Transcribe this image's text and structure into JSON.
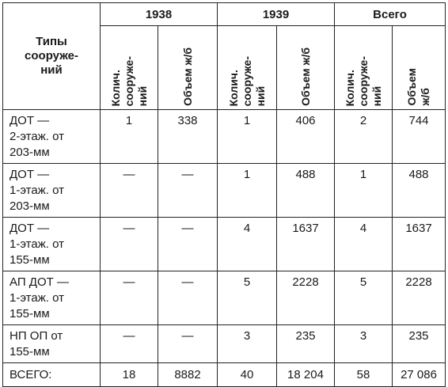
{
  "header": {
    "type_label": "Типы\nсооруже-\nний",
    "years": [
      "1938",
      "1939",
      "Всего"
    ],
    "count_label": "Колич.\nсооруже-\nний",
    "volume_label_short": "Объем ж/б",
    "volume_label_wrapped": "Объем\nж/б"
  },
  "rows": [
    {
      "name": "ДОТ —\n2-этаж. от\n203-мм",
      "c1938": "1",
      "v1938": "338",
      "c1939": "1",
      "v1939": "406",
      "ctotal": "2",
      "vtotal": "744"
    },
    {
      "name": "ДОТ —\n1-этаж. от\n203-мм",
      "c1938": "—",
      "v1938": "—",
      "c1939": "1",
      "v1939": "488",
      "ctotal": "1",
      "vtotal": "488"
    },
    {
      "name": "ДОТ —\n1-этаж. от\n155-мм",
      "c1938": "—",
      "v1938": "—",
      "c1939": "4",
      "v1939": "1637",
      "ctotal": "4",
      "vtotal": "1637"
    },
    {
      "name": "АП ДОТ —\n1-этаж. от\n155-мм",
      "c1938": "—",
      "v1938": "—",
      "c1939": "5",
      "v1939": "2228",
      "ctotal": "5",
      "vtotal": "2228"
    },
    {
      "name": "НП ОП от\n155-мм",
      "c1938": "—",
      "v1938": "—",
      "c1939": "3",
      "v1939": "235",
      "ctotal": "3",
      "vtotal": "235"
    }
  ],
  "total": {
    "name": "ВСЕГО:",
    "c1938": "18",
    "v1938": "8882",
    "c1939": "40",
    "v1939": "18 204",
    "ctotal": "58",
    "vtotal": "27 086"
  }
}
